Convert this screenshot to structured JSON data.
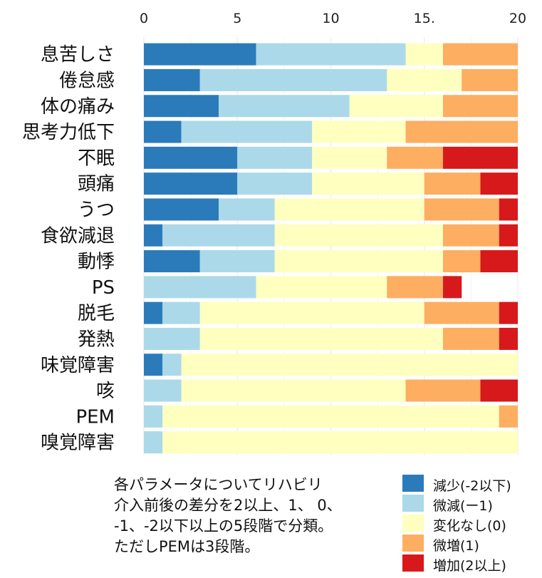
{
  "chart_data": {
    "type": "bar",
    "orientation": "horizontal",
    "stacked": true,
    "xlim": [
      0,
      20
    ],
    "x_ticks": [
      "0",
      "5",
      "10",
      "15.",
      "20"
    ],
    "categories": [
      "息苦しさ",
      "倦怠感",
      "体の痛み",
      "思考力低下",
      "不眠",
      "頭痛",
      "うつ",
      "食欲減退",
      "動悸",
      "PS",
      "脱毛",
      "発熱",
      "味覚障害",
      "咳",
      "PEM",
      "嗅覚障害"
    ],
    "series": [
      {
        "name": "減少(-2以下)",
        "color": "#2b7bba",
        "values": [
          6,
          3,
          4,
          2,
          5,
          5,
          4,
          1,
          3,
          0,
          1,
          0,
          1,
          0,
          0,
          0
        ]
      },
      {
        "name": "微減(ー1)",
        "color": "#abd9e9",
        "values": [
          8,
          10,
          7,
          7,
          4,
          4,
          3,
          6,
          4,
          6,
          2,
          3,
          1,
          2,
          1,
          1
        ]
      },
      {
        "name": "変化なし(0)",
        "color": "#ffffbf",
        "values": [
          2,
          4,
          5,
          5,
          4,
          6,
          8,
          9,
          9,
          7,
          12,
          13,
          18,
          12,
          18,
          19
        ]
      },
      {
        "name": "微増(1)",
        "color": "#fdae61",
        "values": [
          4,
          3,
          4,
          6,
          3,
          3,
          4,
          3,
          2,
          3,
          4,
          3,
          0,
          4,
          1,
          0
        ]
      },
      {
        "name": "増加(2以上)",
        "color": "#d7191c",
        "values": [
          0,
          0,
          0,
          0,
          4,
          2,
          1,
          1,
          2,
          1,
          1,
          1,
          0,
          2,
          0,
          0
        ]
      }
    ],
    "grid": true
  },
  "caption": {
    "lines": [
      "各パラメータについてリハビリ",
      "介入前後の差分を2以上、1、 0、",
      "-1、-2以下以上の5段階で分類。",
      "ただしPEMは3段階。"
    ]
  }
}
